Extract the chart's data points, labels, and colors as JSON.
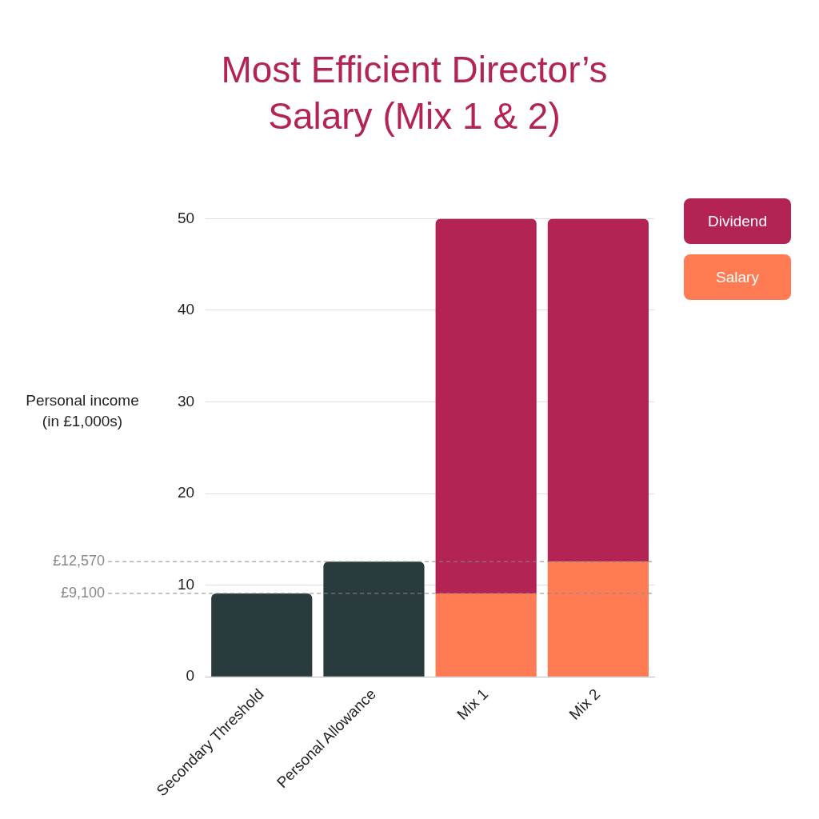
{
  "chart_data": {
    "type": "bar",
    "title": "Most Efficient Director’s Salary (Mix 1 & 2)",
    "ylabel": "Personal income (in £1,000s)",
    "categories": [
      "Secondary Threshold",
      "Personal Allowance",
      "Mix 1",
      "Mix 2"
    ],
    "stacked": true,
    "series": [
      {
        "color": "#2a3b3e",
        "values": [
          9.1,
          12.57,
          null,
          null
        ]
      },
      {
        "name": "Salary",
        "color": "#fe7b53",
        "values": [
          null,
          null,
          9.1,
          12.57
        ]
      },
      {
        "name": "Dividend",
        "color": "#b32454",
        "values": [
          null,
          null,
          40.9,
          37.43
        ]
      }
    ],
    "ylim": [
      0,
      50
    ],
    "yticks": [
      0,
      10,
      20,
      30,
      40,
      50
    ],
    "ref_lines": [
      {
        "axis": "y",
        "value": 12.57,
        "label": "£12,570",
        "color": "#888888",
        "line_style": "dashed"
      },
      {
        "axis": "y",
        "value": 9.1,
        "label": "£9,100",
        "color": "#888888",
        "line_style": "dashed"
      }
    ],
    "grid": "y",
    "legend": "top right"
  }
}
